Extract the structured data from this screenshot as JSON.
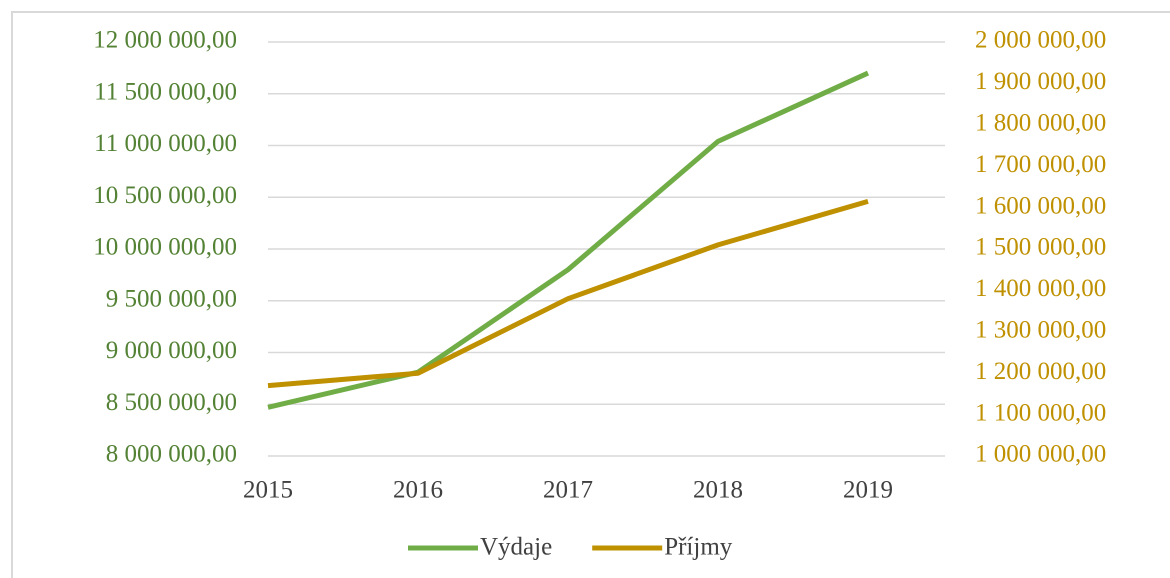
{
  "chart_data": {
    "type": "line",
    "categories": [
      "2015",
      "2016",
      "2017",
      "2018",
      "2019"
    ],
    "series": [
      {
        "name": "Výdaje",
        "color": "#70ad47",
        "values": [
          8470000,
          8810000,
          9800000,
          11040000,
          11700000
        ]
      },
      {
        "name": "Příjmy",
        "color": "#bf9000",
        "axis": "y2",
        "values": [
          1170000,
          1200000,
          1380000,
          1510000,
          1615000
        ]
      }
    ],
    "ylim": [
      8000000,
      12000000
    ],
    "yticks": [
      {
        "value": 8000000,
        "label": "8 000 000,00"
      },
      {
        "value": 8500000,
        "label": "8 500 000,00"
      },
      {
        "value": 9000000,
        "label": "9 000 000,00"
      },
      {
        "value": 9500000,
        "label": "9 500 000,00"
      },
      {
        "value": 10000000,
        "label": "10 000 000,00"
      },
      {
        "value": 10500000,
        "label": "10 500 000,00"
      },
      {
        "value": 11000000,
        "label": "11 000 000,00"
      },
      {
        "value": 11500000,
        "label": "11 500 000,00"
      },
      {
        "value": 12000000,
        "label": "12 000 000,00"
      }
    ],
    "y2lim": [
      1000000,
      2000000
    ],
    "y2ticks": [
      {
        "value": 1000000,
        "label": "1 000 000,00"
      },
      {
        "value": 1100000,
        "label": "1 100 000,00"
      },
      {
        "value": 1200000,
        "label": "1 200 000,00"
      },
      {
        "value": 1300000,
        "label": "1 300 000,00"
      },
      {
        "value": 1400000,
        "label": "1 400 000,00"
      },
      {
        "value": 1500000,
        "label": "1 500 000,00"
      },
      {
        "value": 1600000,
        "label": "1 600 000,00"
      },
      {
        "value": 1700000,
        "label": "1 700 000,00"
      },
      {
        "value": 1800000,
        "label": "1 800 000,00"
      },
      {
        "value": 1900000,
        "label": "1 900 000,00"
      },
      {
        "value": 2000000,
        "label": "2 000 000,00"
      }
    ],
    "grid": true,
    "legend": "bottom"
  }
}
